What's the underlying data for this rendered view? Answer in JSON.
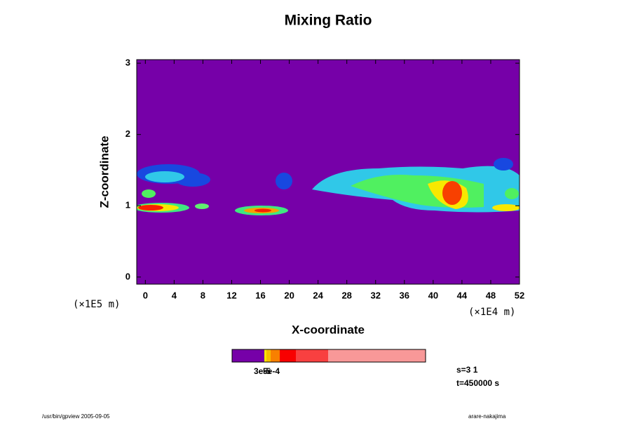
{
  "chart_data": {
    "type": "contour",
    "title": "Mixing Ratio",
    "xlabel": "X-coordinate",
    "ylabel": "Z-coordinate",
    "xunit": "(×1E4 m)",
    "yunit": "(×1E5 m)",
    "xlim": [
      -1.2,
      52
    ],
    "ylim": [
      -0.1,
      3.05
    ],
    "xticks": [
      0,
      4,
      8,
      12,
      16,
      20,
      24,
      28,
      32,
      36,
      40,
      44,
      48,
      52
    ],
    "yticks": [
      0,
      1,
      2,
      3
    ],
    "background_color": "#7600a8",
    "colorbar_labels": [
      "3e-5",
      "5e-4"
    ],
    "info": [
      "s=3 1",
      "t=450000 s"
    ],
    "footer_left": "/usr/bin/gpview 2005-09-05",
    "footer_right": "arare-nakajima"
  }
}
